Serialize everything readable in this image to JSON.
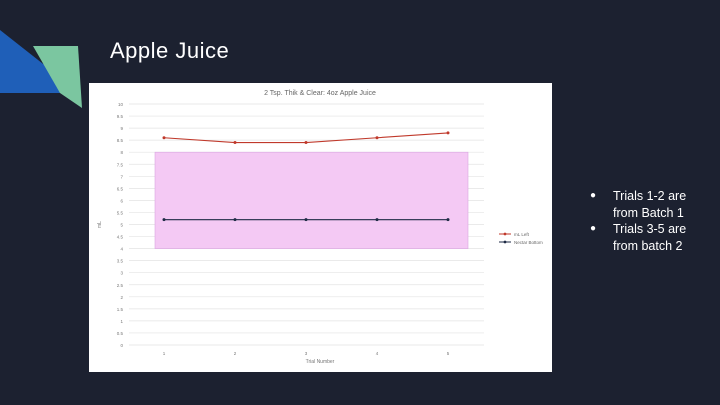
{
  "slide": {
    "title": "Apple Juice",
    "bullets": [
      "Trials 1-2 are from Batch 1",
      "Trials 3-5 are from batch 2"
    ]
  },
  "colors": {
    "background": "#1c2130",
    "accent_blue": "#1f5fb8",
    "accent_green": "#7bc6a0",
    "band_fill": "#f4c9f4",
    "band_stroke": "#d9a6e0",
    "series_left": "#c0392b",
    "series_bottom": "#1d2a44"
  },
  "chart_data": {
    "type": "line",
    "title": "2 Tsp. Thik & Clear: 4oz Apple Juice",
    "xlabel": "Trial Number",
    "ylabel": "mL",
    "categories": [
      "1",
      "2",
      "3",
      "4",
      "5"
    ],
    "ylim": [
      0,
      10
    ],
    "yticks": [
      "0",
      "0.5",
      "1",
      "1.5",
      "2",
      "2.5",
      "3",
      "3.5",
      "4",
      "4.5",
      "5",
      "5.5",
      "6",
      "6.5",
      "7",
      "7.5",
      "8",
      "8.5",
      "9",
      "9.5",
      "10"
    ],
    "grid": true,
    "legend_position": "right",
    "band": {
      "from": 4,
      "to": 8
    },
    "series": [
      {
        "name": "mL Left",
        "values": [
          8.6,
          8.4,
          8.4,
          8.6,
          8.8
        ]
      },
      {
        "name": "Nectar Bottom",
        "values": [
          5.2,
          5.2,
          5.2,
          5.2,
          5.2
        ]
      }
    ]
  }
}
